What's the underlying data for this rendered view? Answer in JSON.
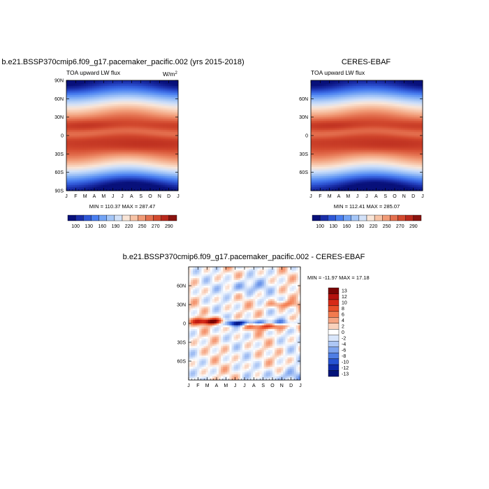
{
  "panels": {
    "model": {
      "title": "b.e21.BSSP370cmip6.f09_g17.pacemaker_pacific.002 (yrs 2015-2018)",
      "left_label": "TOA upward LW flux",
      "units": "W/m",
      "units_sup": "2",
      "minmax": "MIN = 110.37 MAX = 287.47"
    },
    "obs": {
      "title": "CERES-EBAF",
      "left_label": "TOA upward LW flux",
      "minmax": "MIN = 112.41 MAX = 285.07"
    },
    "diff": {
      "title": "b.e21.BSSP370cmip6.f09_g17.pacemaker_pacific.002 - CERES-EBAF",
      "minmax": "MIN = -11.97 MAX =  17.18"
    }
  },
  "chart_data": [
    {
      "type": "heatmap",
      "name": "model",
      "title": "b.e21.BSSP370cmip6.f09_g17.pacemaker_pacific.002 (yrs 2015-2018)",
      "x_tick_labels": [
        "J",
        "F",
        "M",
        "A",
        "M",
        "J",
        "J",
        "A",
        "S",
        "O",
        "N",
        "D",
        "J"
      ],
      "y_tick_labels": [
        "90N",
        "60N",
        "30N",
        "0",
        "30S",
        "60S",
        "90S"
      ],
      "y_tick_values": [
        90,
        60,
        30,
        0,
        -30,
        -60,
        -90
      ],
      "min": 110.37,
      "max": 287.47,
      "colorbar_labels": [
        "100",
        "130",
        "160",
        "190",
        "220",
        "250",
        "270",
        "290"
      ]
    },
    {
      "type": "heatmap",
      "name": "obs",
      "title": "CERES-EBAF",
      "x_tick_labels": [
        "J",
        "F",
        "M",
        "A",
        "M",
        "J",
        "J",
        "A",
        "S",
        "O",
        "N",
        "D",
        "J"
      ],
      "y_tick_labels": [
        "60N",
        "30N",
        "0",
        "30S",
        "60S"
      ],
      "y_tick_values": [
        60,
        30,
        0,
        -30,
        -60
      ],
      "min": 112.41,
      "max": 285.07,
      "colorbar_labels": [
        "100",
        "130",
        "160",
        "190",
        "220",
        "250",
        "270",
        "290"
      ]
    },
    {
      "type": "heatmap",
      "name": "diff",
      "title": "b.e21.BSSP370cmip6.f09_g17.pacemaker_pacific.002 - CERES-EBAF",
      "x_tick_labels": [
        "J",
        "F",
        "M",
        "A",
        "M",
        "J",
        "J",
        "A",
        "S",
        "O",
        "N",
        "D",
        "J"
      ],
      "y_tick_labels": [
        "60N",
        "30N",
        "0",
        "30S",
        "60S"
      ],
      "y_tick_values": [
        60,
        30,
        0,
        -30,
        -60
      ],
      "min": -11.97,
      "max": 17.18,
      "colorbar_labels": [
        "13",
        "12",
        "10",
        "8",
        "6",
        "4",
        "2",
        "0",
        "-2",
        "-4",
        "-6",
        "-8",
        "-10",
        "-12",
        "-13"
      ]
    }
  ],
  "colors": {
    "abs_scale": [
      "#08107a",
      "#1a2ea8",
      "#2f57d6",
      "#4a7ff0",
      "#73a4f5",
      "#a5c6f7",
      "#d2e1f8",
      "#f9e5d7",
      "#f7c3a6",
      "#f19b77",
      "#e4704f",
      "#d34a2f",
      "#b9291c",
      "#8a130f"
    ],
    "diff_scale": [
      "#7a0404",
      "#b4120e",
      "#d62a17",
      "#e84f2a",
      "#f27b4f",
      "#f6a583",
      "#f9d2bd",
      "#ffffff",
      "#d9e6fb",
      "#adc7f5",
      "#7ea4ee",
      "#4f7ee4",
      "#2753d2",
      "#0d2aa8",
      "#03137a"
    ]
  }
}
